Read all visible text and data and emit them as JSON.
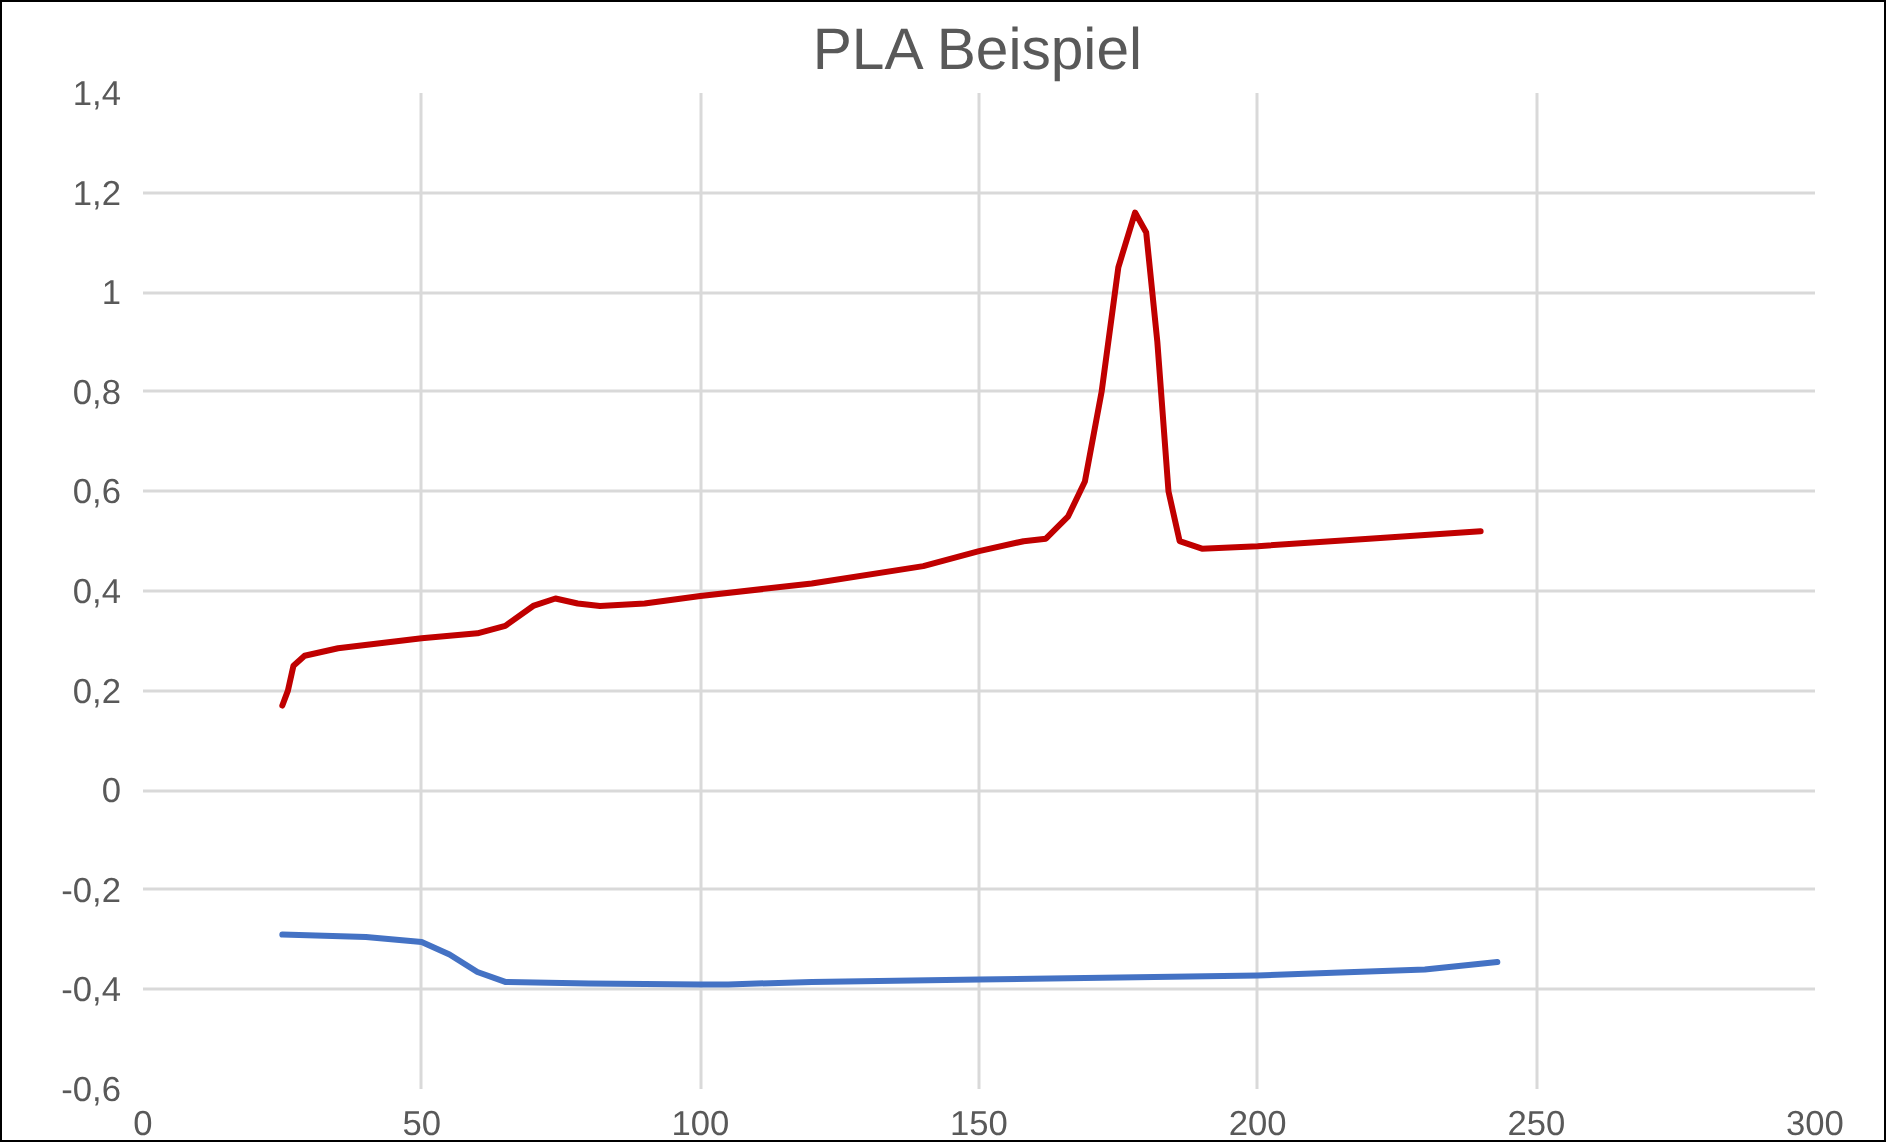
{
  "chart_data": {
    "type": "line",
    "title": "PLA Beispiel",
    "xlim": [
      0,
      300
    ],
    "xticks": [
      0,
      50,
      100,
      150,
      200,
      250,
      300
    ],
    "ylim": [
      -0.6,
      1.4
    ],
    "yticks": [
      {
        "value": -0.6,
        "label": "-0,6"
      },
      {
        "value": -0.4,
        "label": "-0,4"
      },
      {
        "value": -0.2,
        "label": "-0,2"
      },
      {
        "value": 0,
        "label": "0"
      },
      {
        "value": 0.2,
        "label": "0,2"
      },
      {
        "value": 0.4,
        "label": "0,4"
      },
      {
        "value": 0.6,
        "label": "0,6"
      },
      {
        "value": 0.8,
        "label": "0,8"
      },
      {
        "value": 1,
        "label": "1"
      },
      {
        "value": 1.2,
        "label": "1,2"
      },
      {
        "value": 1.4,
        "label": "1,4"
      }
    ],
    "grid": true,
    "series": [
      {
        "color": "#c00000",
        "x": [
          25,
          26,
          27,
          29,
          35,
          50,
          60,
          65,
          70,
          74,
          78,
          82,
          90,
          100,
          120,
          140,
          150,
          158,
          162,
          166,
          169,
          172,
          175,
          178,
          180,
          182,
          184,
          186,
          190,
          200,
          220,
          240
        ],
        "values": [
          0.17,
          0.2,
          0.25,
          0.27,
          0.285,
          0.305,
          0.315,
          0.33,
          0.37,
          0.385,
          0.375,
          0.37,
          0.375,
          0.39,
          0.415,
          0.45,
          0.48,
          0.5,
          0.505,
          0.55,
          0.62,
          0.8,
          1.05,
          1.16,
          1.12,
          0.9,
          0.6,
          0.5,
          0.485,
          0.49,
          0.505,
          0.52
        ]
      },
      {
        "color": "#4472c4",
        "x": [
          25,
          40,
          50,
          55,
          60,
          65,
          80,
          100,
          105,
          120,
          150,
          200,
          230,
          243
        ],
        "values": [
          -0.29,
          -0.295,
          -0.305,
          -0.33,
          -0.365,
          -0.385,
          -0.388,
          -0.39,
          -0.39,
          -0.385,
          -0.38,
          -0.372,
          -0.36,
          -0.345
        ]
      }
    ]
  }
}
